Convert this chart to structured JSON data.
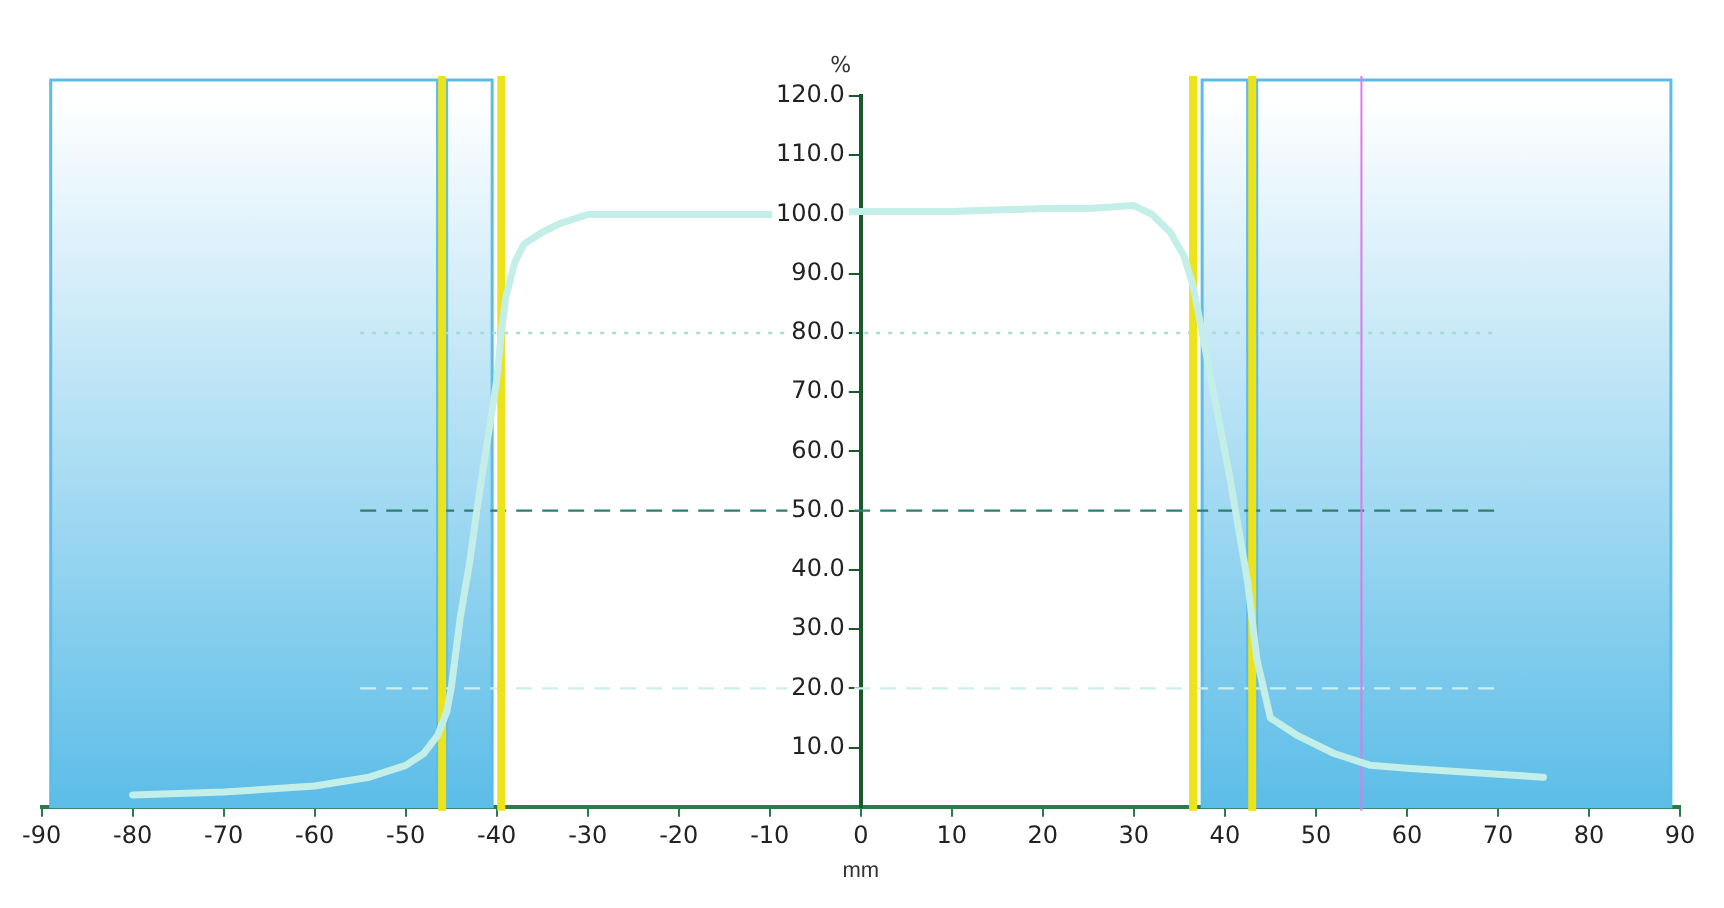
{
  "chart_data": {
    "type": "line",
    "xlabel": "mm",
    "ylabel": "%",
    "x": [
      -80,
      -70,
      -60,
      -54,
      -50,
      -48,
      -46.5,
      -45.5,
      -45,
      -44.5,
      -44,
      -43,
      -42,
      -41,
      -40,
      -39.5,
      -39,
      -38,
      -37,
      -35,
      -33,
      -30,
      -20,
      -10,
      0,
      10,
      20,
      25,
      30,
      32,
      34,
      35.5,
      36.5,
      37.5,
      38.5,
      39.5,
      40.5,
      41.5,
      42.5,
      43.5,
      45,
      48,
      52,
      56,
      60,
      65,
      70,
      75
    ],
    "series": [
      {
        "color": "#c4eee8",
        "values": [
          2,
          2.5,
          3.5,
          5,
          7,
          9,
          12,
          16,
          20,
          26,
          32,
          41,
          52,
          62,
          72,
          80,
          86,
          92,
          95,
          97,
          98.5,
          100,
          100,
          100,
          100.5,
          100.5,
          101,
          101,
          101.5,
          100,
          97,
          93,
          88,
          80,
          72,
          64,
          56,
          47,
          38,
          25,
          15,
          12,
          9,
          7,
          6.5,
          6,
          5.5,
          5
        ]
      }
    ],
    "xlim": [
      -90,
      90
    ],
    "xticks": [
      -90,
      -80,
      -70,
      -60,
      -50,
      -40,
      -30,
      -20,
      -10,
      0,
      10,
      20,
      30,
      40,
      50,
      60,
      70,
      80,
      90
    ],
    "ylim": [
      0,
      120
    ],
    "yticks": [
      {
        "value": 10,
        "label": "10.0"
      },
      {
        "value": 20,
        "label": "20.0"
      },
      {
        "value": 30,
        "label": "30.0"
      },
      {
        "value": 40,
        "label": "40.0"
      },
      {
        "value": 50,
        "label": "50.0"
      },
      {
        "value": 60,
        "label": "60.0"
      },
      {
        "value": 70,
        "label": "70.0"
      },
      {
        "value": 80,
        "label": "80.0"
      },
      {
        "value": 90,
        "label": "90.0"
      },
      {
        "value": 100,
        "label": "100.0"
      },
      {
        "value": 110,
        "label": "110.0"
      },
      {
        "value": 120,
        "label": "120.0"
      }
    ],
    "bands": [
      {
        "axis": "x",
        "from": -89,
        "to": -46.5,
        "color": "#5cbde8"
      },
      {
        "axis": "x",
        "from": -45.5,
        "to": -40.5,
        "color": "#5cbde8"
      },
      {
        "axis": "x",
        "from": 37.5,
        "to": 42.5,
        "color": "#5cbde8"
      },
      {
        "axis": "x",
        "from": 43.5,
        "to": 89,
        "color": "#5cbde8"
      }
    ],
    "ref_lines": [
      {
        "axis": "y",
        "value": 80,
        "color": "#a8dcd4",
        "line_style": "dotted"
      },
      {
        "axis": "y",
        "value": 50,
        "color": "#2e7f72",
        "line_style": "dashed"
      },
      {
        "axis": "y",
        "value": 20,
        "color": "#cdeeee",
        "line_style": "dashed"
      },
      {
        "axis": "x",
        "value": -46,
        "color": "#ede31a",
        "line_style": "solid"
      },
      {
        "axis": "x",
        "value": -39.5,
        "color": "#ede31a",
        "line_style": "solid"
      },
      {
        "axis": "x",
        "value": 36.5,
        "color": "#ede31a",
        "line_style": "solid"
      },
      {
        "axis": "x",
        "value": 43,
        "color": "#ede31a",
        "line_style": "solid"
      },
      {
        "axis": "x",
        "value": 55,
        "color": "#e078e8",
        "line_style": "solid"
      }
    ],
    "grid": false,
    "legend": false,
    "marker": "none",
    "line_style": "solid"
  }
}
